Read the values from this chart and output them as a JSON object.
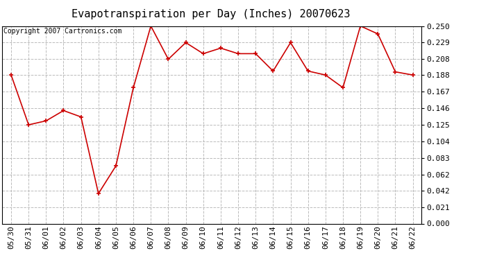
{
  "title": "Evapotranspiration per Day (Inches) 20070623",
  "copyright_text": "Copyright 2007 Cartronics.com",
  "x_labels": [
    "05/30",
    "05/31",
    "06/01",
    "06/02",
    "06/03",
    "06/04",
    "06/05",
    "06/06",
    "06/07",
    "06/08",
    "06/09",
    "06/10",
    "06/11",
    "06/12",
    "06/13",
    "06/14",
    "06/15",
    "06/16",
    "06/17",
    "06/18",
    "06/19",
    "06/20",
    "06/21",
    "06/22"
  ],
  "y_values": [
    0.188,
    0.125,
    0.13,
    0.143,
    0.135,
    0.038,
    0.073,
    0.172,
    0.25,
    0.208,
    0.229,
    0.215,
    0.222,
    0.215,
    0.215,
    0.193,
    0.229,
    0.193,
    0.188,
    0.172,
    0.25,
    0.24,
    0.192,
    0.188
  ],
  "y_ticks": [
    0.0,
    0.021,
    0.042,
    0.062,
    0.083,
    0.104,
    0.125,
    0.146,
    0.167,
    0.188,
    0.208,
    0.229,
    0.25
  ],
  "line_color": "#cc0000",
  "marker": "+",
  "marker_size": 5,
  "marker_edge_width": 1.2,
  "line_width": 1.2,
  "bg_color": "#ffffff",
  "plot_bg_color": "#ffffff",
  "grid_color": "#bbbbbb",
  "title_fontsize": 11,
  "copyright_fontsize": 7,
  "tick_fontsize": 8,
  "ylim_min": 0.0,
  "ylim_max": 0.25
}
